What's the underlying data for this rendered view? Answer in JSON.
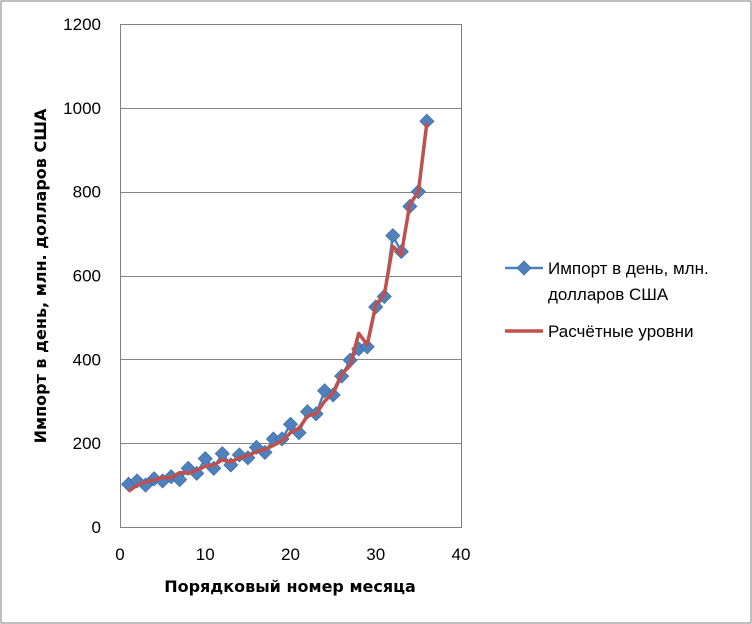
{
  "chart_data": {
    "type": "line",
    "xlabel": "Порядковый номер месяца",
    "ylabel": "Импорт в день, млн. долларов США",
    "xlim": [
      0,
      40
    ],
    "ylim": [
      0,
      1200
    ],
    "x_ticks": [
      "0",
      "10",
      "20",
      "30",
      "40"
    ],
    "y_ticks": [
      "0",
      "200",
      "400",
      "600",
      "800",
      "1000",
      "1200"
    ],
    "grid": "horizontal",
    "legend_position": "right",
    "series": [
      {
        "name": "Импорт в день, млн. долларов США",
        "legend_lines": [
          "Импорт в день, млн.",
          "долларов США"
        ],
        "color": "#4f81bd",
        "marker": "diamond",
        "x": [
          1,
          2,
          3,
          4,
          5,
          6,
          7,
          8,
          9,
          10,
          11,
          12,
          13,
          14,
          15,
          16,
          17,
          18,
          19,
          20,
          21,
          22,
          23,
          24,
          25,
          26,
          27,
          28,
          29,
          30,
          31,
          32,
          33,
          34,
          35,
          36
        ],
        "values": [
          102,
          110,
          100,
          115,
          110,
          120,
          113,
          140,
          128,
          163,
          140,
          175,
          148,
          172,
          165,
          190,
          178,
          210,
          210,
          245,
          225,
          275,
          270,
          325,
          315,
          360,
          398,
          425,
          430,
          525,
          550,
          695,
          657,
          765,
          800,
          968
        ]
      },
      {
        "name": "Расчётные уровни",
        "legend_lines": [
          "Расчётные уровни"
        ],
        "color": "#c0504d",
        "marker": "none",
        "x": [
          1,
          2,
          3,
          4,
          5,
          6,
          7,
          8,
          9,
          10,
          11,
          12,
          13,
          14,
          15,
          16,
          17,
          18,
          19,
          20,
          21,
          22,
          23,
          24,
          25,
          26,
          27,
          28,
          29,
          30,
          31,
          32,
          33,
          34,
          35,
          36
        ],
        "values": [
          85,
          100,
          108,
          112,
          118,
          117,
          130,
          128,
          135,
          145,
          148,
          160,
          155,
          165,
          170,
          180,
          185,
          195,
          205,
          225,
          235,
          265,
          270,
          300,
          320,
          365,
          385,
          462,
          435,
          530,
          555,
          670,
          650,
          770,
          800,
          965
        ]
      }
    ]
  }
}
